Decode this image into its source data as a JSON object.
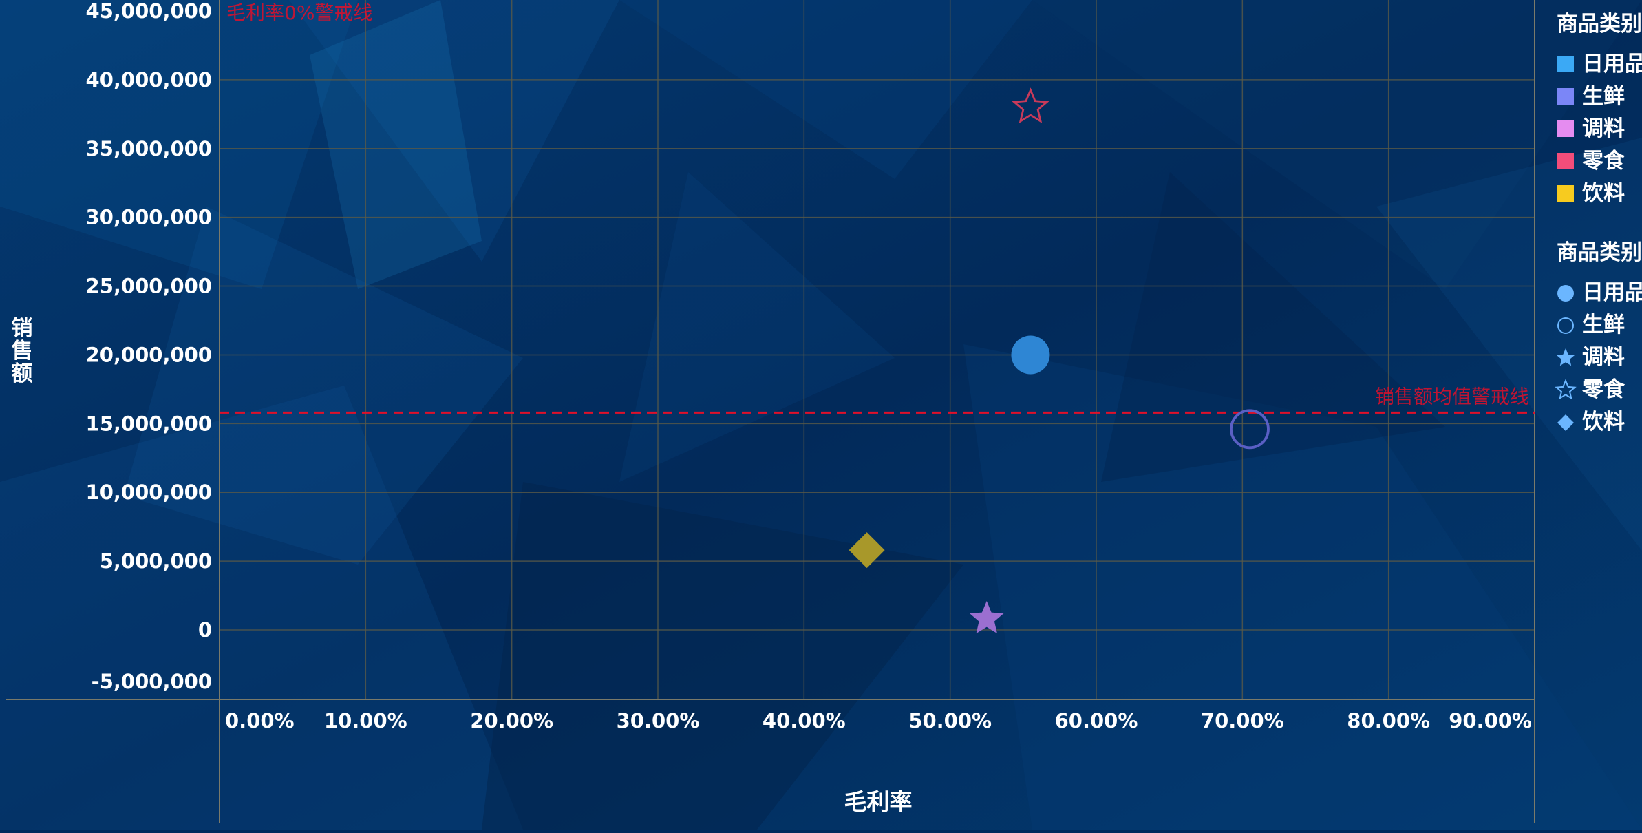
{
  "chart_data": {
    "type": "scatter",
    "xlabel": "毛利率",
    "ylabel": "销售额",
    "x_ticks": [
      "0.00%",
      "10.00%",
      "20.00%",
      "30.00%",
      "40.00%",
      "50.00%",
      "60.00%",
      "70.00%",
      "80.00%",
      "90.00%"
    ],
    "y_ticks": [
      "45,000,000",
      "40,000,000",
      "35,000,000",
      "30,000,000",
      "25,000,000",
      "20,000,000",
      "15,000,000",
      "10,000,000",
      "5,000,000",
      "0",
      "-5,000,000"
    ],
    "xlim": [
      0,
      0.9
    ],
    "ylim": [
      -5000000,
      45000000
    ],
    "grid": true,
    "points": [
      {
        "category": "日用品",
        "x": 0.555,
        "y": 20000000,
        "color": "#2e86d4",
        "shape": "circle"
      },
      {
        "category": "生鲜",
        "x": 0.705,
        "y": 14600000,
        "color": "#5a5fc4",
        "shape": "circle-outline"
      },
      {
        "category": "调料",
        "x": 0.525,
        "y": 800000,
        "color": "#9b6fd0",
        "shape": "star"
      },
      {
        "category": "零食",
        "x": 0.555,
        "y": 38000000,
        "color": "#c83a5a",
        "shape": "star-outline"
      },
      {
        "category": "饮料",
        "x": 0.443,
        "y": 5800000,
        "color": "#a8982a",
        "shape": "diamond"
      }
    ],
    "annotations": {
      "margin_line_label": "毛利率0%警戒线",
      "mean_line_label": "销售额均值警戒线",
      "mean_line_value": 15800000
    },
    "legend_color": {
      "title": "商品类别",
      "items": [
        {
          "label": "日用品",
          "color": "#3ba9f5"
        },
        {
          "label": "生鲜",
          "color": "#7b86f7"
        },
        {
          "label": "调料",
          "color": "#e58cf0"
        },
        {
          "label": "零食",
          "color": "#f34d7a"
        },
        {
          "label": "饮料",
          "color": "#f7cb1f"
        }
      ]
    },
    "legend_shape": {
      "title": "商品类别",
      "items": [
        {
          "label": "日用品",
          "shape": "circle"
        },
        {
          "label": "生鲜",
          "shape": "circle-outline"
        },
        {
          "label": "调料",
          "shape": "star"
        },
        {
          "label": "零食",
          "shape": "star-outline"
        },
        {
          "label": "饮料",
          "shape": "diamond"
        }
      ]
    },
    "colors": {
      "background": "#012a5c",
      "grid": "#5a5a48",
      "text": "#ffffff",
      "warning": "#e0102a",
      "legend_shape": "#6bb6ff"
    }
  }
}
